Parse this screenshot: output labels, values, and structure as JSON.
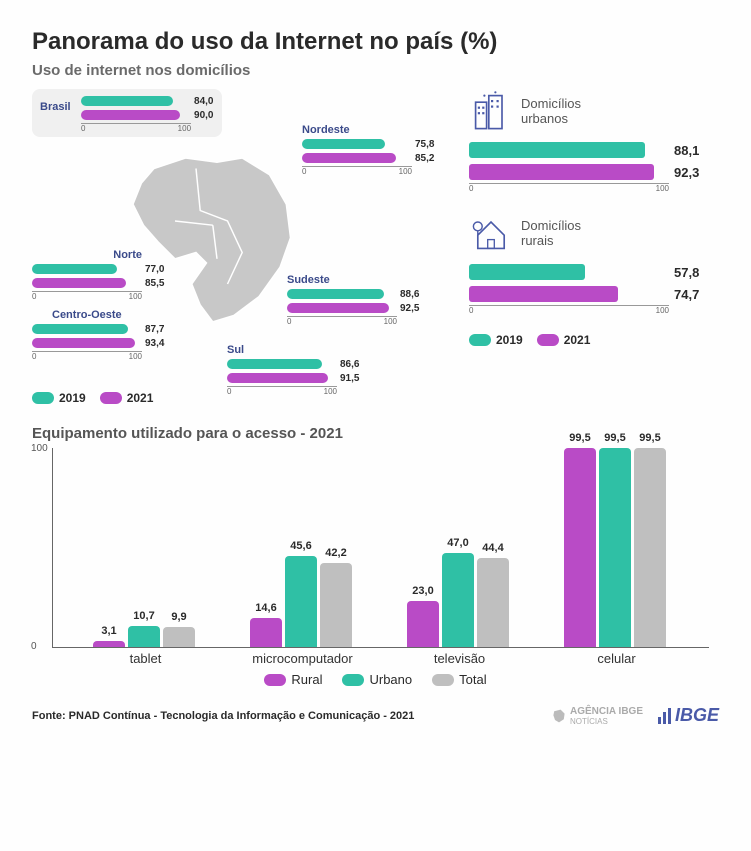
{
  "title": "Panorama do uso da Internet no país (%)",
  "subtitle_top": "Uso de internet nos domicílios",
  "colors": {
    "teal": "#2fc0a5",
    "purple": "#b94bc6",
    "gray": "#bfbfbf",
    "label_blue": "#3a4a8a",
    "map_fill": "#c8c8c8",
    "text_dark": "#2a2a2a"
  },
  "years": {
    "a": "2019",
    "b": "2021"
  },
  "brasil": {
    "label": "Brasil",
    "v2019": 84.0,
    "v2021": 90.0,
    "v2019_label": "84,0",
    "v2021_label": "90,0"
  },
  "regions": {
    "nordeste": {
      "label": "Nordeste",
      "v2019": 75.8,
      "v2021": 85.2,
      "v2019_label": "75,8",
      "v2021_label": "85,2"
    },
    "norte": {
      "label": "Norte",
      "v2019": 77.0,
      "v2021": 85.5,
      "v2019_label": "77,0",
      "v2021_label": "85,5"
    },
    "sudeste": {
      "label": "Sudeste",
      "v2019": 88.6,
      "v2021": 92.5,
      "v2019_label": "88,6",
      "v2021_label": "92,5"
    },
    "centro_oeste": {
      "label": "Centro-Oeste",
      "v2019": 87.7,
      "v2021": 93.4,
      "v2019_label": "87,7",
      "v2021_label": "93,4"
    },
    "sul": {
      "label": "Sul",
      "v2019": 86.6,
      "v2021": 91.5,
      "v2019_label": "86,6",
      "v2021_label": "91,5"
    }
  },
  "urban": {
    "label": "Domicílios\nurbanos",
    "v2019": 88.1,
    "v2021": 92.3,
    "v2019_label": "88,1",
    "v2021_label": "92,3"
  },
  "rural": {
    "label": "Domicílios\nrurais",
    "v2019": 57.8,
    "v2021": 74.7,
    "v2019_label": "57,8",
    "v2021_label": "74,7"
  },
  "axis": {
    "min": "0",
    "max": "100"
  },
  "equip": {
    "title": "Equipamento utilizado para o acesso - 2021",
    "ylim": [
      0,
      100
    ],
    "yticks": [
      0,
      100
    ],
    "categories": [
      "tablet",
      "microcomputador",
      "televisão",
      "celular"
    ],
    "series_labels": {
      "rural": "Rural",
      "urbano": "Urbano",
      "total": "Total"
    },
    "series_colors": {
      "rural": "#b94bc6",
      "urbano": "#2fc0a5",
      "total": "#bfbfbf"
    },
    "data": [
      {
        "cat": "tablet",
        "rural": 3.1,
        "urbano": 10.7,
        "total": 9.9,
        "rural_label": "3,1",
        "urbano_label": "10,7",
        "total_label": "9,9"
      },
      {
        "cat": "microcomputador",
        "rural": 14.6,
        "urbano": 45.6,
        "total": 42.2,
        "rural_label": "14,6",
        "urbano_label": "45,6",
        "total_label": "42,2"
      },
      {
        "cat": "televisão",
        "rural": 23.0,
        "urbano": 47.0,
        "total": 44.4,
        "rural_label": "23,0",
        "urbano_label": "47,0",
        "total_label": "44,4"
      },
      {
        "cat": "celular",
        "rural": 99.5,
        "urbano": 99.5,
        "total": 99.5,
        "rural_label": "99,5",
        "urbano_label": "99,5",
        "total_label": "99,5"
      }
    ]
  },
  "source": "Fonte: PNAD Contínua - Tecnologia da Informação e Comunicação - 2021",
  "logos": {
    "agencia": "AGÊNCIA IBGE",
    "agencia_sub": "NOTÍCIAS",
    "ibge": "IBGE"
  }
}
